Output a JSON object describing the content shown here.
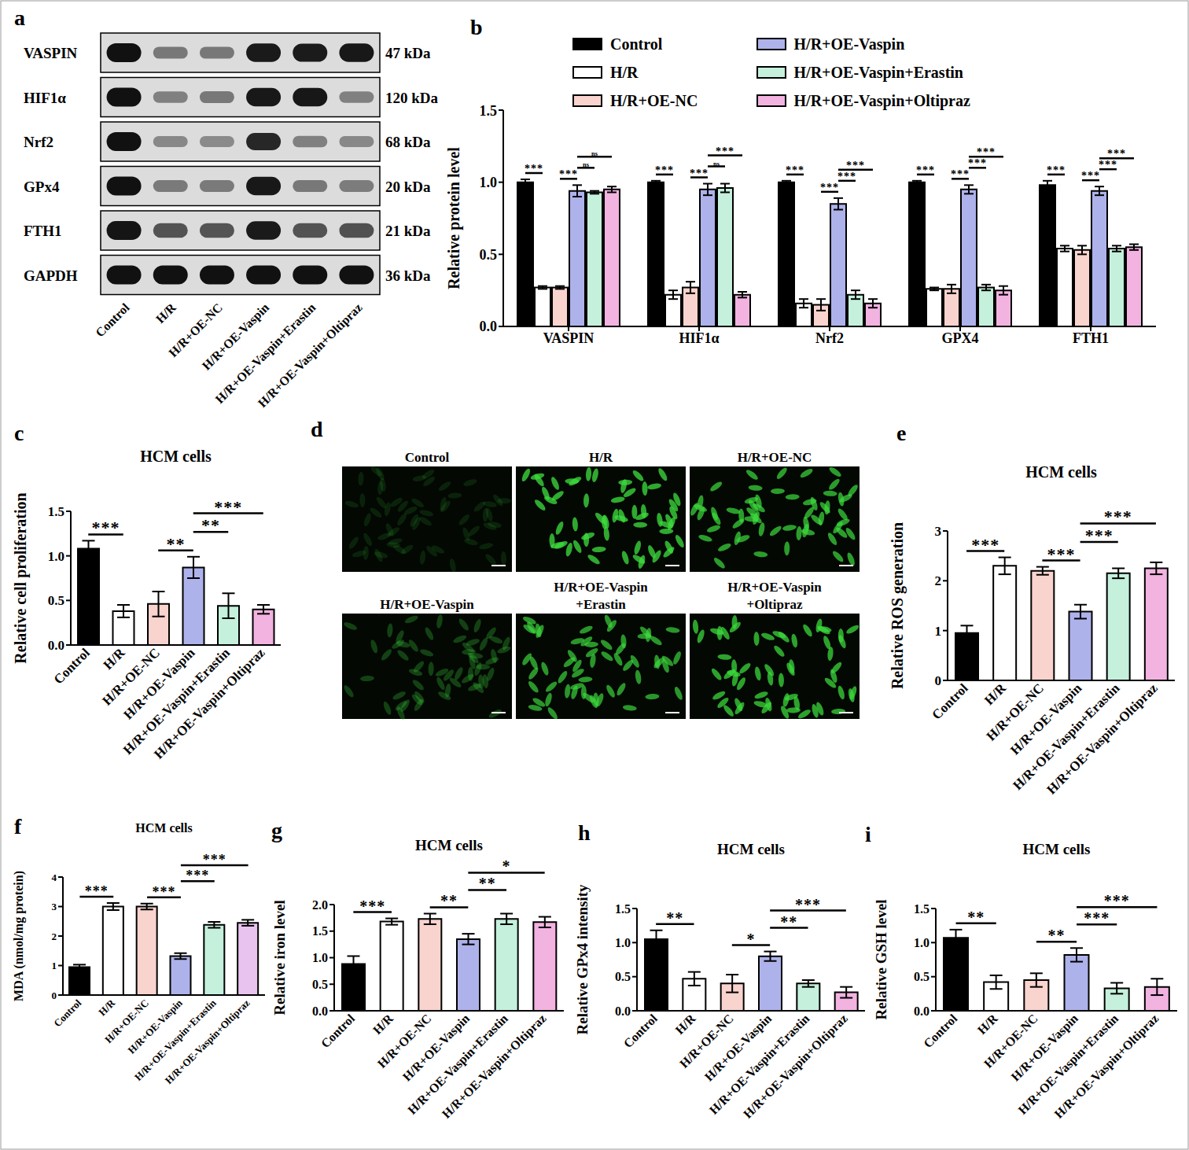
{
  "panel_labels": [
    "a",
    "b",
    "c",
    "d",
    "e",
    "f",
    "g",
    "h",
    "i"
  ],
  "blot": {
    "proteins": [
      "VASPIN",
      "HIF1α",
      "Nrf2",
      "GPx4",
      "FTH1",
      "GAPDH"
    ],
    "sizes": [
      "47 kDa",
      "120 kDa",
      "68 kDa",
      "20 kDa",
      "21 kDa",
      "36 kDa"
    ],
    "lanes": [
      "Control",
      "H/R",
      "H/R+OE-NC",
      "H/R+OE-Vaspin",
      "H/R+OE-Vaspin+Erastin",
      "H/R+OE-Vaspin+Oltipraz"
    ]
  },
  "images": {
    "labels": [
      [
        "Control"
      ],
      [
        "H/R"
      ],
      [
        "H/R+OE-NC"
      ],
      [
        "H/R+OE-Vaspin"
      ],
      [
        "H/R+OE-Vaspin",
        "+Erastin"
      ],
      [
        "H/R+OE-Vaspin",
        "+Oltipraz"
      ]
    ]
  },
  "chart_data": [
    {
      "type": "bar",
      "y_label": "Relative protein level",
      "legend": "top",
      "categories": [
        "VASPIN",
        "HIF1α",
        "Nrf2",
        "GPX4",
        "FTH1"
      ],
      "series": [
        {
          "name": "Control",
          "color": "#000000",
          "values": [
            1.0,
            1.0,
            1.0,
            1.0,
            0.98
          ],
          "errors": [
            0.02,
            0.01,
            0.01,
            0.01,
            0.03
          ]
        },
        {
          "name": "H/R",
          "color": "#ffffff",
          "values": [
            0.27,
            0.22,
            0.16,
            0.26,
            0.54
          ],
          "errors": [
            0.01,
            0.03,
            0.03,
            0.01,
            0.02
          ]
        },
        {
          "name": "H/R+OE-NC",
          "color": "#f9d3cd",
          "values": [
            0.27,
            0.27,
            0.15,
            0.26,
            0.53
          ],
          "errors": [
            0.01,
            0.04,
            0.04,
            0.03,
            0.03
          ]
        },
        {
          "name": "H/R+OE-Vaspin",
          "color": "#aeb2ea",
          "values": [
            0.94,
            0.95,
            0.85,
            0.95,
            0.94
          ],
          "errors": [
            0.04,
            0.04,
            0.04,
            0.03,
            0.03
          ]
        },
        {
          "name": "H/R+OE-Vaspin+Erastin",
          "color": "#c4f0dc",
          "values": [
            0.93,
            0.96,
            0.22,
            0.27,
            0.54
          ],
          "errors": [
            0.01,
            0.03,
            0.03,
            0.02,
            0.02
          ]
        },
        {
          "name": "H/R+OE-Vaspin+Oltipraz",
          "color": "#f2b3e1",
          "values": [
            0.95,
            0.22,
            0.16,
            0.25,
            0.55
          ],
          "errors": [
            0.02,
            0.02,
            0.03,
            0.03,
            0.02
          ]
        }
      ],
      "ylim": [
        0,
        1.5
      ],
      "yticks": [
        {
          "value": 0,
          "label": "0.0"
        },
        {
          "value": 0.5,
          "label": "0.5"
        },
        {
          "value": 1,
          "label": "1.0"
        },
        {
          "value": 1.5,
          "label": "1.5"
        }
      ],
      "annotations": [
        {
          "category": 0,
          "from": 0,
          "to": 1,
          "label": "***"
        },
        {
          "category": 0,
          "from": 2,
          "to": 3,
          "label": "***"
        },
        {
          "category": 0,
          "from": 3,
          "to": 4,
          "label": "ns"
        },
        {
          "category": 0,
          "from": 3,
          "to": 5,
          "label": "ns"
        },
        {
          "category": 1,
          "from": 0,
          "to": 1,
          "label": "***"
        },
        {
          "category": 1,
          "from": 2,
          "to": 3,
          "label": "***"
        },
        {
          "category": 1,
          "from": 3,
          "to": 4,
          "label": "ns"
        },
        {
          "category": 1,
          "from": 3,
          "to": 5,
          "label": "***"
        },
        {
          "category": 2,
          "from": 0,
          "to": 1,
          "label": "***"
        },
        {
          "category": 2,
          "from": 2,
          "to": 3,
          "label": "***"
        },
        {
          "category": 2,
          "from": 3,
          "to": 4,
          "label": "***"
        },
        {
          "category": 2,
          "from": 3,
          "to": 5,
          "label": "***"
        },
        {
          "category": 3,
          "from": 0,
          "to": 1,
          "label": "***"
        },
        {
          "category": 3,
          "from": 2,
          "to": 3,
          "label": "***"
        },
        {
          "category": 3,
          "from": 3,
          "to": 4,
          "label": "***"
        },
        {
          "category": 3,
          "from": 3,
          "to": 5,
          "label": "***"
        },
        {
          "category": 4,
          "from": 0,
          "to": 1,
          "label": "***"
        },
        {
          "category": 4,
          "from": 2,
          "to": 3,
          "label": "***"
        },
        {
          "category": 4,
          "from": 3,
          "to": 4,
          "label": "***"
        },
        {
          "category": 4,
          "from": 3,
          "to": 5,
          "label": "***"
        }
      ]
    },
    {
      "type": "bar",
      "title": "HCM cells",
      "y_label": "Relative cell proliferation",
      "categories": [
        "Control",
        "H/R",
        "H/R+OE-NC",
        "H/R+OE-Vaspin",
        "H/R+OE-Vaspin+Erastin",
        "H/R+OE-Vaspin+Oltipraz"
      ],
      "values": [
        1.08,
        0.38,
        0.46,
        0.87,
        0.44,
        0.4
      ],
      "errors": [
        0.09,
        0.07,
        0.14,
        0.12,
        0.14,
        0.05
      ],
      "colors": [
        "#000000",
        "#ffffff",
        "#f9d3cd",
        "#aeb2ea",
        "#c4f0dc",
        "#f2b3e1"
      ],
      "ylim": [
        0,
        1.5
      ],
      "yticks": [
        {
          "value": 0,
          "label": "0.0"
        },
        {
          "value": 0.5,
          "label": "0.5"
        },
        {
          "value": 1,
          "label": "1.0"
        },
        {
          "value": 1.5,
          "label": "1.5"
        }
      ],
      "annotations": [
        {
          "from": 0,
          "to": 1,
          "label": "***"
        },
        {
          "from": 2,
          "to": 3,
          "label": "**"
        },
        {
          "from": 3,
          "to": 4,
          "label": "**"
        },
        {
          "from": 3,
          "to": 5,
          "label": "***"
        }
      ]
    },
    {
      "type": "bar",
      "title": "HCM cells",
      "y_label": "Relative ROS generation",
      "categories": [
        "Control",
        "H/R",
        "H/R+OE-NC",
        "H/R+OE-Vaspin",
        "H/R+OE-Vaspin+Erastin",
        "H/R+OE-Vaspin+Oltipraz"
      ],
      "values": [
        0.95,
        2.3,
        2.2,
        1.38,
        2.15,
        2.25
      ],
      "errors": [
        0.15,
        0.17,
        0.08,
        0.14,
        0.1,
        0.12
      ],
      "colors": [
        "#000000",
        "#ffffff",
        "#f9d3cd",
        "#aeb2ea",
        "#c4f0dc",
        "#f2b3e1"
      ],
      "ylim": [
        0,
        3
      ],
      "yticks": [
        0,
        1,
        2,
        3
      ],
      "annotations": [
        {
          "from": 0,
          "to": 1,
          "label": "***"
        },
        {
          "from": 2,
          "to": 3,
          "label": "***"
        },
        {
          "from": 3,
          "to": 4,
          "label": "***"
        },
        {
          "from": 3,
          "to": 5,
          "label": "***"
        }
      ]
    },
    {
      "type": "bar",
      "title": "HCM cells",
      "y_label": "MDA (nmol/mg protein)",
      "categories": [
        "Control",
        "H/R",
        "H/R+OE-NC",
        "H/R+OE-Vaspin",
        "H/R+OE-Vaspin+Erastin",
        "H/R+OE-Vaspin+Oltipraz"
      ],
      "values": [
        0.95,
        3.0,
        3.0,
        1.32,
        2.38,
        2.45
      ],
      "errors": [
        0.08,
        0.12,
        0.1,
        0.1,
        0.1,
        0.1
      ],
      "colors": [
        "#000000",
        "#ffffff",
        "#f9d3cd",
        "#aeb2ea",
        "#c4f0dc",
        "#e8c3ef"
      ],
      "ylim": [
        0,
        4
      ],
      "yticks": [
        0,
        1,
        2,
        3,
        4
      ],
      "annotations": [
        {
          "from": 0,
          "to": 1,
          "label": "***"
        },
        {
          "from": 2,
          "to": 3,
          "label": "***"
        },
        {
          "from": 3,
          "to": 4,
          "label": "***"
        },
        {
          "from": 3,
          "to": 5,
          "label": "***"
        }
      ]
    },
    {
      "type": "bar",
      "title": "HCM cells",
      "y_label": "Relative iron level",
      "categories": [
        "Control",
        "H/R",
        "H/R+OE-NC",
        "H/R+OE-Vaspin",
        "H/R+OE-Vaspin+Erastin",
        "H/R+OE-Vaspin+Oltipraz"
      ],
      "values": [
        0.88,
        1.68,
        1.73,
        1.35,
        1.73,
        1.67
      ],
      "errors": [
        0.15,
        0.06,
        0.1,
        0.1,
        0.1,
        0.1
      ],
      "colors": [
        "#000000",
        "#ffffff",
        "#f9d3cd",
        "#aeb2ea",
        "#c4f0dc",
        "#f2b3e1"
      ],
      "ylim": [
        0,
        2
      ],
      "yticks": [
        {
          "value": 0,
          "label": "0.0"
        },
        {
          "value": 0.5,
          "label": "0.5"
        },
        {
          "value": 1,
          "label": "1.0"
        },
        {
          "value": 1.5,
          "label": "1.5"
        },
        {
          "value": 2,
          "label": "2.0"
        }
      ],
      "annotations": [
        {
          "from": 0,
          "to": 1,
          "label": "***"
        },
        {
          "from": 2,
          "to": 3,
          "label": "**"
        },
        {
          "from": 3,
          "to": 4,
          "label": "**"
        },
        {
          "from": 3,
          "to": 5,
          "label": "*"
        }
      ]
    },
    {
      "type": "bar",
      "title": "HCM cells",
      "y_label": "Relative GPx4 intensity",
      "categories": [
        "Control",
        "H/R",
        "H/R+OE-NC",
        "H/R+OE-Vaspin",
        "H/R+OE-Vaspin+Erastin",
        "H/R+OE-Vaspin+Oltipraz"
      ],
      "values": [
        1.05,
        0.47,
        0.4,
        0.8,
        0.4,
        0.27
      ],
      "errors": [
        0.13,
        0.1,
        0.13,
        0.07,
        0.05,
        0.08
      ],
      "colors": [
        "#000000",
        "#ffffff",
        "#f9d3cd",
        "#aeb2ea",
        "#c4f0dc",
        "#f2b3e1"
      ],
      "ylim": [
        0,
        1.5
      ],
      "yticks": [
        {
          "value": 0,
          "label": "0.0"
        },
        {
          "value": 0.5,
          "label": "0.5"
        },
        {
          "value": 1,
          "label": "1.0"
        },
        {
          "value": 1.5,
          "label": "1.5"
        }
      ],
      "annotations": [
        {
          "from": 0,
          "to": 1,
          "label": "**"
        },
        {
          "from": 2,
          "to": 3,
          "label": "*"
        },
        {
          "from": 3,
          "to": 4,
          "label": "**"
        },
        {
          "from": 3,
          "to": 5,
          "label": "***"
        }
      ]
    },
    {
      "type": "bar",
      "title": "HCM cells",
      "y_label": "Relative GSH level",
      "categories": [
        "Control",
        "H/R",
        "H/R+OE-NC",
        "H/R+OE-Vaspin",
        "H/R+OE-Vaspin+Erastin",
        "H/R+OE-Vaspin+Oltipraz"
      ],
      "values": [
        1.07,
        0.42,
        0.45,
        0.82,
        0.33,
        0.35
      ],
      "errors": [
        0.12,
        0.1,
        0.1,
        0.1,
        0.08,
        0.12
      ],
      "colors": [
        "#000000",
        "#ffffff",
        "#f9d3cd",
        "#aeb2ea",
        "#c4f0dc",
        "#f2b3e1"
      ],
      "ylim": [
        0,
        1.5
      ],
      "yticks": [
        {
          "value": 0,
          "label": "0.0"
        },
        {
          "value": 0.5,
          "label": "0.5"
        },
        {
          "value": 1,
          "label": "1.0"
        },
        {
          "value": 1.5,
          "label": "1.5"
        }
      ],
      "annotations": [
        {
          "from": 0,
          "to": 1,
          "label": "**"
        },
        {
          "from": 2,
          "to": 3,
          "label": "**"
        },
        {
          "from": 3,
          "to": 4,
          "label": "***"
        },
        {
          "from": 3,
          "to": 5,
          "label": "***"
        }
      ]
    }
  ]
}
